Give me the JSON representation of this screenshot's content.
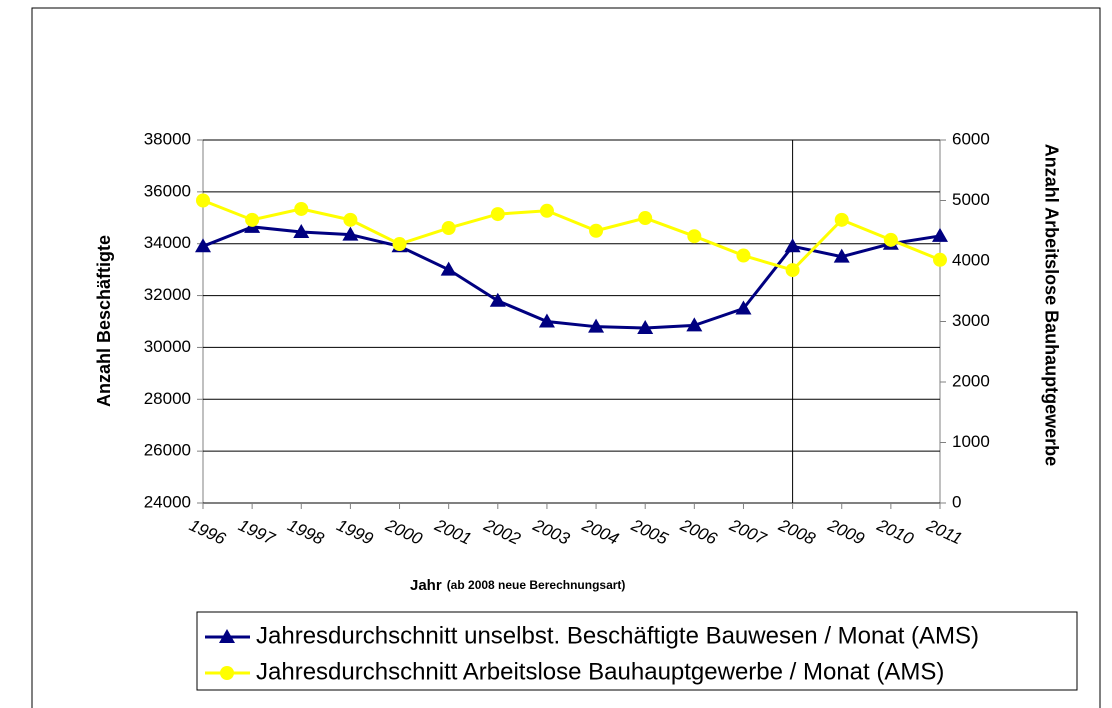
{
  "chart_data": {
    "type": "line",
    "categories": [
      "1996",
      "1997",
      "1998",
      "1999",
      "2000",
      "2001",
      "2002",
      "2003",
      "2004",
      "2005",
      "2006",
      "2007",
      "2008",
      "2009",
      "2010",
      "2011"
    ],
    "x_label": "Jahr",
    "x_label_note": "(ab 2008 neue Berechnungsart)",
    "y_label": "Anzahl Beschäftigte",
    "y2_label": "Anzahl Arbeitslose Bauhauptgewerbe",
    "ylim": [
      24000,
      38000
    ],
    "yticks": [
      24000,
      26000,
      28000,
      30000,
      32000,
      34000,
      36000,
      38000
    ],
    "y2lim": [
      0,
      6000
    ],
    "y2ticks": [
      0,
      1000,
      2000,
      3000,
      4000,
      5000,
      6000
    ],
    "grid": true,
    "vertical_line": "2008",
    "legend": "bottom",
    "series": [
      {
        "name": "Jahresdurchschnitt unselbst. Beschäftigte Bauwesen / Monat (AMS)",
        "color": "#000080",
        "marker": "triangle",
        "values": [
          33900,
          34650,
          34450,
          34350,
          33900,
          33000,
          31800,
          31000,
          30800,
          30750,
          30850,
          31500,
          33900,
          33500,
          34000,
          34300
        ]
      },
      {
        "name": "Jahresdurchschnitt Arbeitslose Bauhauptgewerbe / Monat (AMS)",
        "color": "#ffff00",
        "marker": "circle",
        "axis": "y2",
        "values": [
          5000,
          4680,
          4860,
          4680,
          4280,
          4545,
          4775,
          4830,
          4500,
          4710,
          4410,
          4090,
          3850,
          4680,
          4350,
          4020
        ]
      }
    ]
  }
}
